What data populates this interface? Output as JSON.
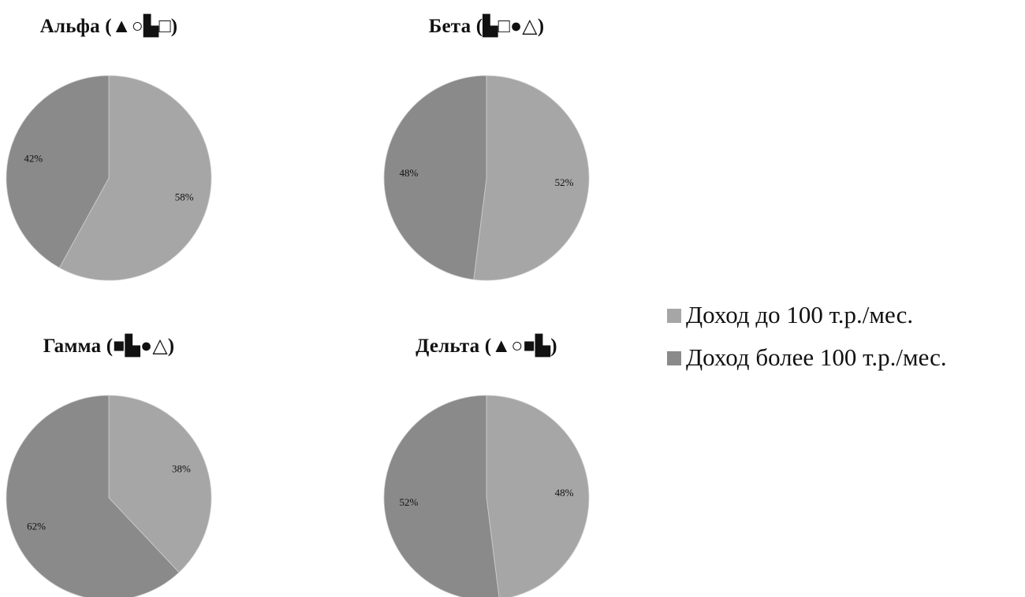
{
  "colors": {
    "light_slice": "#a6a6a6",
    "dark_slice": "#8a8a8a",
    "separator": "#cfcfcf"
  },
  "legend": [
    {
      "label": "Доход до 100 т.р./мес.",
      "color": "#a6a6a6"
    },
    {
      "label": "Доход более 100 т.р./мес.",
      "color": "#8a8a8a"
    }
  ],
  "chart_data": [
    {
      "type": "pie",
      "title": "Альфа (▲○▙□)",
      "categories": [
        "Доход до 100 т.р./мес.",
        "Доход более 100 т.р./мес."
      ],
      "values": [
        58,
        42
      ],
      "labels": [
        "58%",
        "42%"
      ]
    },
    {
      "type": "pie",
      "title": "Бета (▙□●△)",
      "categories": [
        "Доход до 100 т.р./мес.",
        "Доход более 100 т.р./мес."
      ],
      "values": [
        52,
        48
      ],
      "labels": [
        "52%",
        "48%"
      ]
    },
    {
      "type": "pie",
      "title": "Гамма (■▙●△)",
      "categories": [
        "Доход до 100 т.р./мес.",
        "Доход более 100 т.р./мес."
      ],
      "values": [
        38,
        62
      ],
      "labels": [
        "38%",
        "62%"
      ]
    },
    {
      "type": "pie",
      "title": "Дельта (▲○■▙)",
      "categories": [
        "Доход до 100 т.р./мес.",
        "Доход более 100 т.р./мес."
      ],
      "values": [
        48,
        52
      ],
      "labels": [
        "48%",
        "52%"
      ]
    }
  ]
}
